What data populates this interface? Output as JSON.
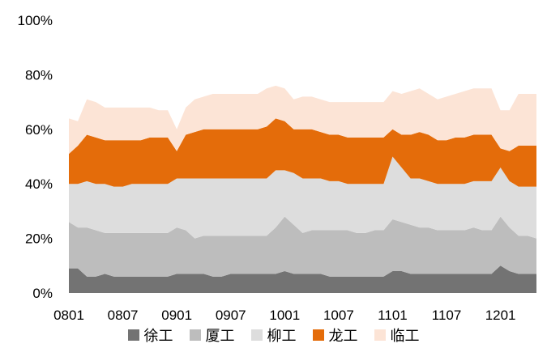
{
  "chart_data": {
    "type": "area",
    "stacked": true,
    "percent": true,
    "x": [
      "0801",
      "0802",
      "0803",
      "0804",
      "0805",
      "0806",
      "0807",
      "0808",
      "0809",
      "0810",
      "0811",
      "0812",
      "0901",
      "0902",
      "0903",
      "0904",
      "0905",
      "0906",
      "0907",
      "0908",
      "0909",
      "0910",
      "0911",
      "0912",
      "1001",
      "1002",
      "1003",
      "1004",
      "1005",
      "1006",
      "1007",
      "1008",
      "1009",
      "1010",
      "1011",
      "1012",
      "1101",
      "1102",
      "1103",
      "1104",
      "1105",
      "1106",
      "1107",
      "1108",
      "1109",
      "1110",
      "1111",
      "1112",
      "1201",
      "1202",
      "1203",
      "1204",
      "1205"
    ],
    "x_tick_labels": [
      "0801",
      "0807",
      "0901",
      "0907",
      "1001",
      "1007",
      "1101",
      "1107",
      "1201"
    ],
    "y_tick_labels": [
      "0%",
      "20%",
      "40%",
      "60%",
      "80%",
      "100%"
    ],
    "ylim": [
      0,
      100
    ],
    "grid": false,
    "legend_position": "bottom",
    "series": [
      {
        "name": "徐工",
        "color": "#737373",
        "values": [
          9,
          9,
          6,
          6,
          7,
          6,
          6,
          6,
          6,
          6,
          6,
          6,
          7,
          7,
          7,
          7,
          6,
          6,
          7,
          7,
          7,
          7,
          7,
          7,
          8,
          7,
          7,
          7,
          7,
          6,
          6,
          6,
          6,
          6,
          6,
          6,
          8,
          8,
          7,
          7,
          7,
          7,
          7,
          7,
          7,
          7,
          7,
          7,
          10,
          8,
          7,
          7,
          7
        ]
      },
      {
        "name": "厦工",
        "color": "#bdbdbd",
        "values": [
          17,
          15,
          18,
          17,
          15,
          16,
          16,
          16,
          16,
          16,
          16,
          16,
          17,
          16,
          13,
          14,
          15,
          15,
          14,
          14,
          14,
          14,
          14,
          17,
          20,
          18,
          15,
          16,
          16,
          17,
          17,
          17,
          16,
          16,
          17,
          17,
          19,
          18,
          18,
          17,
          17,
          16,
          16,
          16,
          16,
          17,
          16,
          16,
          18,
          16,
          14,
          14,
          13
        ]
      },
      {
        "name": "柳工",
        "color": "#dddddd",
        "values": [
          14,
          16,
          17,
          17,
          18,
          17,
          17,
          18,
          18,
          18,
          18,
          18,
          18,
          19,
          22,
          21,
          21,
          21,
          21,
          21,
          21,
          21,
          21,
          21,
          17,
          19,
          20,
          19,
          19,
          18,
          18,
          17,
          18,
          18,
          17,
          17,
          23,
          20,
          17,
          18,
          17,
          17,
          17,
          17,
          17,
          17,
          18,
          18,
          18,
          17,
          18,
          18,
          19
        ]
      },
      {
        "name": "龙工",
        "color": "#e46c0a",
        "values": [
          11,
          14,
          17,
          17,
          16,
          17,
          17,
          16,
          16,
          17,
          17,
          17,
          10,
          16,
          17,
          18,
          18,
          18,
          18,
          18,
          18,
          18,
          19,
          19,
          18,
          16,
          18,
          18,
          17,
          17,
          17,
          17,
          17,
          17,
          17,
          17,
          10,
          12,
          16,
          17,
          17,
          16,
          16,
          17,
          17,
          17,
          17,
          17,
          7,
          11,
          15,
          15,
          15
        ]
      },
      {
        "name": "临工",
        "color": "#fce4d6",
        "values": [
          13,
          9,
          13,
          13,
          12,
          12,
          12,
          12,
          12,
          11,
          10,
          10,
          8,
          10,
          12,
          12,
          13,
          13,
          13,
          13,
          13,
          13,
          14,
          12,
          12,
          11,
          12,
          12,
          12,
          12,
          12,
          13,
          13,
          13,
          13,
          13,
          14,
          15,
          16,
          16,
          15,
          15,
          16,
          16,
          17,
          17,
          17,
          17,
          14,
          15,
          19,
          19,
          19
        ]
      }
    ]
  }
}
